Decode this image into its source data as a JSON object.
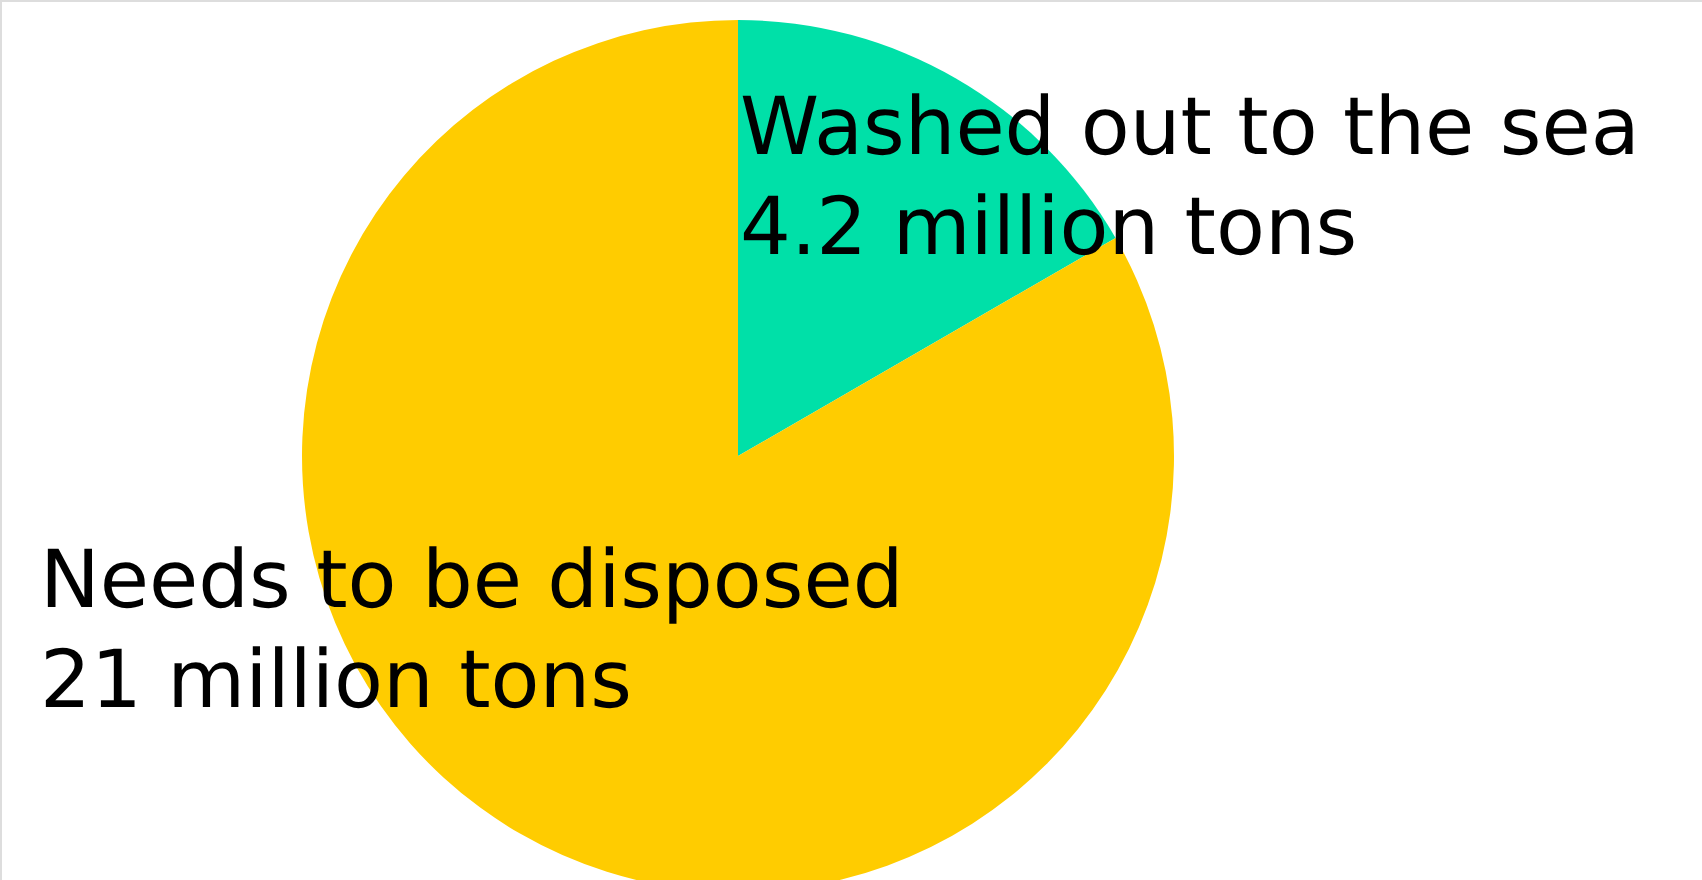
{
  "chart_data": {
    "type": "pie",
    "categories": [
      "Washed out to the sea",
      "Needs to be disposed"
    ],
    "values": [
      4.2,
      21
    ],
    "value_labels": [
      "4.2 million tons",
      "21 million tons"
    ],
    "colors": [
      "#00e0a8",
      "#ffcc00"
    ]
  }
}
